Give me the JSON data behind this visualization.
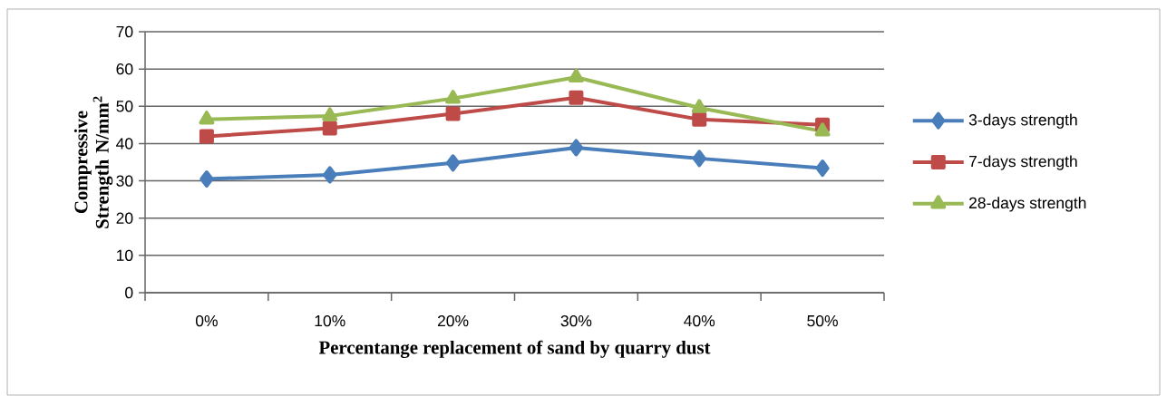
{
  "chart_data": {
    "type": "line",
    "xlabel": "Percentange replacement of sand by quarry dust",
    "ylabel": "Compressive Strength N/mm$^{2}$",
    "categories": [
      "0%",
      "10%",
      "20%",
      "30%",
      "40%",
      "50%"
    ],
    "series": [
      {
        "name": "3-days strength",
        "color": "#4a7ebb",
        "marker": "diamond",
        "values": [
          30.5,
          31.6,
          34.8,
          38.9,
          36.0,
          33.4
        ]
      },
      {
        "name": "7-days strength",
        "color": "#be4b48",
        "marker": "square",
        "values": [
          41.9,
          44.1,
          48.0,
          52.3,
          46.5,
          45.0
        ]
      },
      {
        "name": "28-days strength",
        "color": "#98b954",
        "marker": "triangle",
        "values": [
          46.5,
          47.4,
          52.1,
          57.8,
          49.6,
          43.3
        ]
      }
    ],
    "ylim": [
      0,
      70
    ],
    "yticks": [
      0,
      10,
      20,
      30,
      40,
      50,
      60,
      70
    ],
    "grid": "y",
    "legend": "right"
  }
}
